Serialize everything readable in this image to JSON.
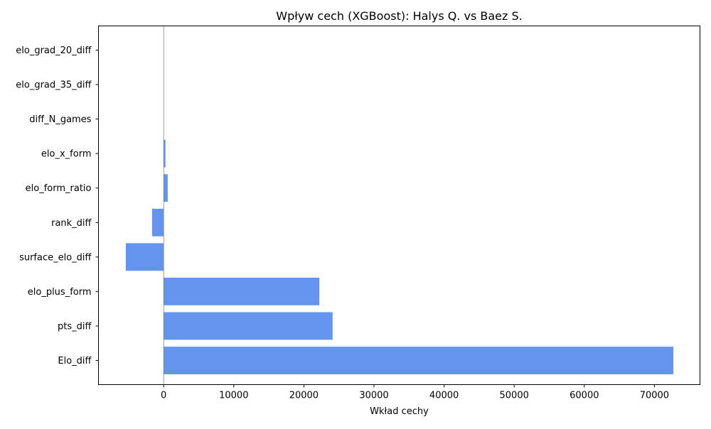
{
  "chart_data": {
    "type": "bar",
    "orientation": "horizontal",
    "title": "Wpływ cech (XGBoost): Halys Q. vs Baez S.",
    "xlabel": "Wkład cechy",
    "ylabel": "",
    "categories": [
      "Elo_diff",
      "pts_diff",
      "elo_plus_form",
      "surface_elo_diff",
      "rank_diff",
      "elo_form_ratio",
      "elo_x_form",
      "diff_N_games",
      "elo_grad_35_diff",
      "elo_grad_20_diff"
    ],
    "values": [
      72700,
      24100,
      22200,
      -5400,
      -1650,
      580,
      250,
      0,
      0,
      0
    ],
    "xlim": [
      -9300,
      76500
    ],
    "xticks": [
      0,
      10000,
      20000,
      30000,
      40000,
      50000,
      60000,
      70000
    ],
    "xtick_labels": [
      "0",
      "10000",
      "20000",
      "30000",
      "40000",
      "50000",
      "60000",
      "70000"
    ],
    "zero_line": true,
    "grid": false,
    "legend": false,
    "bar_color": "#6495ED",
    "zero_line_color": "#808080"
  }
}
